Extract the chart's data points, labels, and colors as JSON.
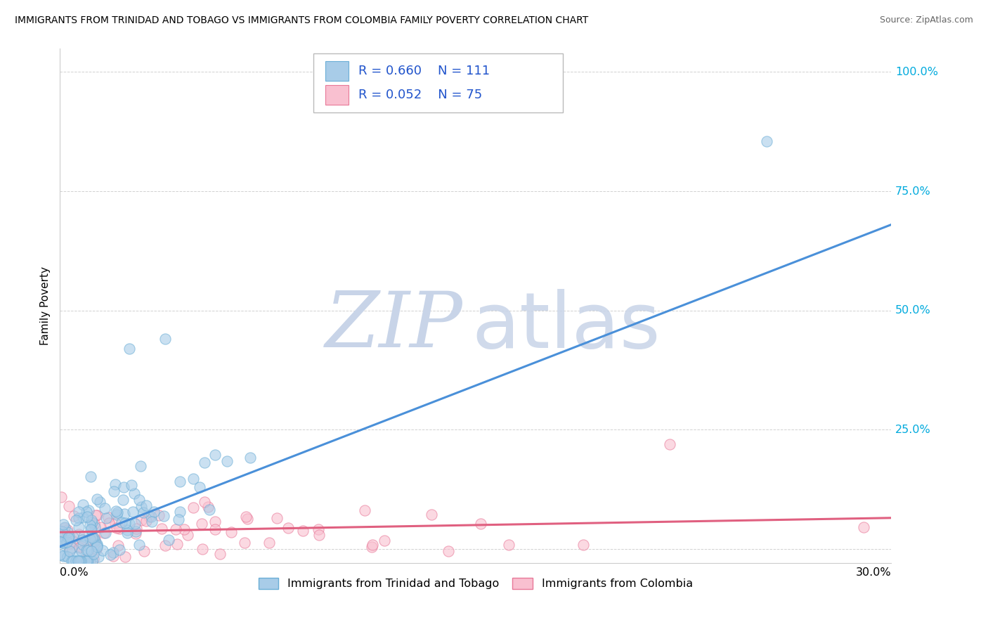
{
  "title": "IMMIGRANTS FROM TRINIDAD AND TOBAGO VS IMMIGRANTS FROM COLOMBIA FAMILY POVERTY CORRELATION CHART",
  "source": "Source: ZipAtlas.com",
  "ylabel": "Family Poverty",
  "xlim": [
    0.0,
    0.3
  ],
  "ylim": [
    -0.03,
    1.05
  ],
  "series1_label": "Immigrants from Trinidad and Tobago",
  "series1_color": "#a8cce8",
  "series1_edge": "#6aaed6",
  "series1_R": "0.660",
  "series1_N": "111",
  "series2_label": "Immigrants from Colombia",
  "series2_color": "#f9c0d0",
  "series2_edge": "#e87898",
  "series2_R": "0.052",
  "series2_N": "75",
  "trendline1_color": "#4a90d9",
  "trendline2_color": "#e06080",
  "trendline1_x": [
    0.0,
    0.3
  ],
  "trendline1_y": [
    0.005,
    0.68
  ],
  "trendline2_x": [
    0.0,
    0.3
  ],
  "trendline2_y": [
    0.035,
    0.065
  ],
  "legend_R1": "R = 0.660",
  "legend_N1": "N = 111",
  "legend_R2": "R = 0.052",
  "legend_N2": "N = 75",
  "legend_color": "#2255cc",
  "right_axis_color": "#00aadd",
  "ytick_vals": [
    0.0,
    0.25,
    0.5,
    0.75,
    1.0
  ],
  "ytick_labels": [
    "",
    "25.0%",
    "50.0%",
    "75.0%",
    "100.0%"
  ],
  "watermark_ZIP_color": "#c8d4e8",
  "watermark_atlas_color": "#c8d4e8"
}
